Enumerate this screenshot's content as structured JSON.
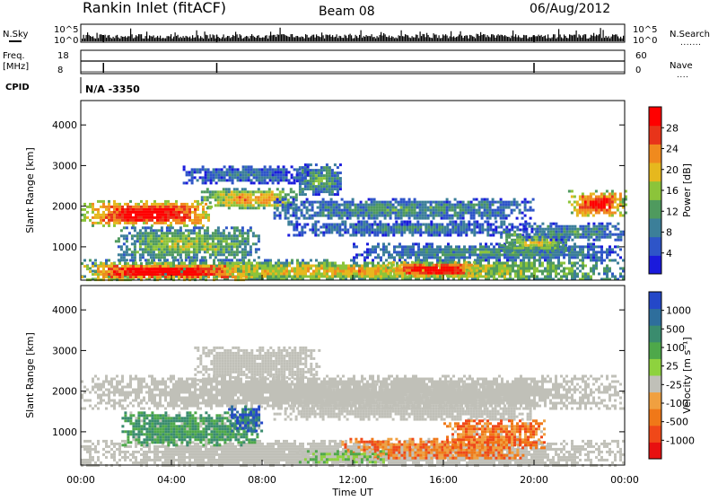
{
  "header": {
    "station": "Rankin Inlet (fitACF)",
    "beam": "Beam 08",
    "date": "06/Aug/2012"
  },
  "strip_labels": {
    "nsky": "N.Sky",
    "nsky_top": "10^5",
    "nsky_bottom": "10^0",
    "freq_1": "Freq.",
    "freq_2": "[MHz]",
    "freq_top": "18",
    "freq_bottom": "8",
    "nsearch": "N.Search",
    "nsearch_top": "10^5",
    "nsearch_bottom": "10^0",
    "nave": "Nave",
    "nave_top": "60",
    "nave_bottom": "0",
    "cpid": "CPID",
    "cpid_value": "N/A -3350"
  },
  "chart_data": [
    {
      "type": "heatmap",
      "panel": "power",
      "ylabel": "Slant Range [km]",
      "yticks": [
        1000,
        2000,
        3000,
        4000
      ],
      "ylim": [
        180,
        4600
      ],
      "xlim_hours": [
        0,
        24
      ],
      "colorbar_label": "Power [dB]",
      "colorbar_ticks": [
        "4",
        "8",
        "12",
        "16",
        "20",
        "24",
        "28"
      ],
      "colorscale": [
        "#1a1adc",
        "#2e55c8",
        "#3c7f99",
        "#4f9a5e",
        "#8cc43a",
        "#e6b81e",
        "#f08a1e",
        "#e8341a",
        "#ff0000"
      ],
      "bands": [
        {
          "t0": 0.0,
          "t1": 5.8,
          "r0": 1550,
          "r1": 2150,
          "level": 0.92
        },
        {
          "t0": 5.3,
          "t1": 9.5,
          "r0": 1950,
          "r1": 2450,
          "level": 0.62
        },
        {
          "t0": 9.5,
          "t1": 11.5,
          "r0": 2300,
          "r1": 3050,
          "level": 0.35
        },
        {
          "t0": 4.5,
          "t1": 10.0,
          "r0": 2600,
          "r1": 3000,
          "level": 0.22
        },
        {
          "t0": 1.5,
          "t1": 7.8,
          "r0": 700,
          "r1": 1500,
          "level": 0.45
        },
        {
          "t0": 8.5,
          "t1": 20.0,
          "r0": 1700,
          "r1": 2200,
          "level": 0.3
        },
        {
          "t0": 9.0,
          "t1": 19.6,
          "r0": 1300,
          "r1": 1650,
          "level": 0.25
        },
        {
          "t0": 12.0,
          "t1": 23.8,
          "r0": 700,
          "r1": 1100,
          "level": 0.3
        },
        {
          "t0": 18.5,
          "t1": 21.5,
          "r0": 900,
          "r1": 1400,
          "level": 0.5
        },
        {
          "t0": 19.5,
          "t1": 24.0,
          "r0": 1200,
          "r1": 1600,
          "level": 0.3
        },
        {
          "t0": 21.5,
          "t1": 24.0,
          "r0": 1750,
          "r1": 2400,
          "level": 0.85
        },
        {
          "t0": 0.0,
          "t1": 24.0,
          "r0": 180,
          "r1": 700,
          "level": 0.55
        },
        {
          "t0": 0.0,
          "t1": 7.5,
          "r0": 220,
          "r1": 620,
          "level": 0.95
        },
        {
          "t0": 13.5,
          "t1": 17.5,
          "r0": 300,
          "r1": 650,
          "level": 0.95
        }
      ]
    },
    {
      "type": "heatmap",
      "panel": "velocity",
      "ylabel": "Slant Range [km]",
      "yticks": [
        1000,
        2000,
        3000,
        4000
      ],
      "ylim": [
        180,
        4600
      ],
      "xlabel": "Time UT",
      "xticks": [
        "00:00",
        "04:00",
        "08:00",
        "12:00",
        "16:00",
        "20:00",
        "00:00"
      ],
      "xlim_hours": [
        0,
        24
      ],
      "colorbar_label": "Velocity [m s⁻¹]",
      "colorbar_ticks": [
        "1000",
        "500",
        "100",
        "25",
        "-25",
        "-100",
        "-500",
        "-1000"
      ],
      "colorscale": [
        "#2448c8",
        "#2e6e9c",
        "#3a8c6e",
        "#4ea84a",
        "#8ed23e",
        "#c0c0b8",
        "#f0a040",
        "#f07818",
        "#f04818",
        "#e81010"
      ],
      "bands": [
        {
          "t0": 0.0,
          "t1": 24.0,
          "r0": 1600,
          "r1": 2400,
          "class": "ground"
        },
        {
          "t0": 5.0,
          "t1": 10.5,
          "r0": 2300,
          "r1": 3100,
          "class": "ground"
        },
        {
          "t0": 8.5,
          "t1": 20.0,
          "r0": 1300,
          "r1": 2200,
          "class": "ground"
        },
        {
          "t0": 0.0,
          "t1": 24.0,
          "r0": 180,
          "r1": 800,
          "class": "ground"
        },
        {
          "t0": 1.8,
          "t1": 7.8,
          "r0": 700,
          "r1": 1500,
          "class": "positive"
        },
        {
          "t0": 6.5,
          "t1": 8.0,
          "r0": 1050,
          "r1": 1650,
          "class": "strong_positive"
        },
        {
          "t0": 11.5,
          "t1": 19.5,
          "r0": 350,
          "r1": 850,
          "class": "negative"
        },
        {
          "t0": 16.0,
          "t1": 20.5,
          "r0": 600,
          "r1": 1300,
          "class": "negative"
        },
        {
          "t0": 9.5,
          "t1": 13.5,
          "r0": 250,
          "r1": 550,
          "class": "weak_positive"
        }
      ]
    }
  ]
}
